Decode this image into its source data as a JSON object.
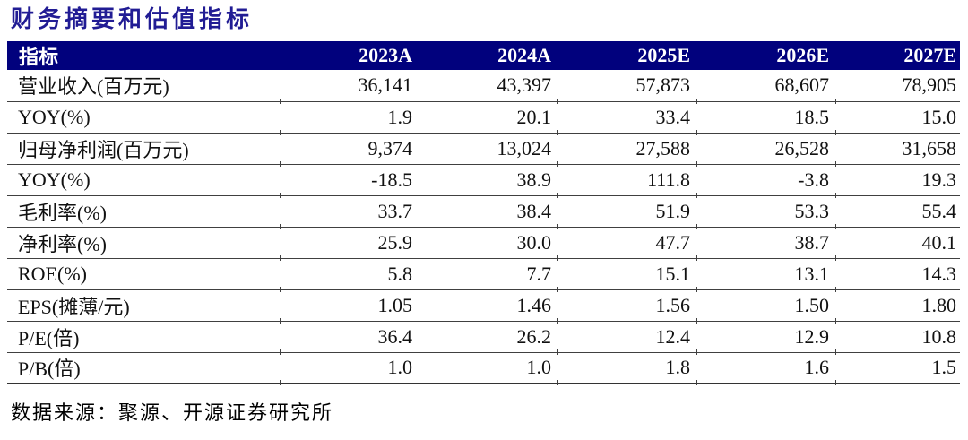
{
  "title": "财务摘要和估值指标",
  "source": "数据来源：聚源、开源证券研究所",
  "colors": {
    "header_bg": "#01017d",
    "header_text": "#ffffff",
    "title_text": "#211c94",
    "rule": "#404040"
  },
  "table": {
    "columns": [
      "指标",
      "2023A",
      "2024A",
      "2025E",
      "2026E",
      "2027E"
    ],
    "rows": [
      {
        "label": "营业收入(百万元)",
        "values": [
          "36,141",
          "43,397",
          "57,873",
          "68,607",
          "78,905"
        ]
      },
      {
        "label": "YOY(%)",
        "values": [
          "1.9",
          "20.1",
          "33.4",
          "18.5",
          "15.0"
        ]
      },
      {
        "label": "归母净利润(百万元)",
        "values": [
          "9,374",
          "13,024",
          "27,588",
          "26,528",
          "31,658"
        ]
      },
      {
        "label": "YOY(%)",
        "values": [
          "-18.5",
          "38.9",
          "111.8",
          "-3.8",
          "19.3"
        ]
      },
      {
        "label": "毛利率(%)",
        "values": [
          "33.7",
          "38.4",
          "51.9",
          "53.3",
          "55.4"
        ]
      },
      {
        "label": "净利率(%)",
        "values": [
          "25.9",
          "30.0",
          "47.7",
          "38.7",
          "40.1"
        ]
      },
      {
        "label": "ROE(%)",
        "values": [
          "5.8",
          "7.7",
          "15.1",
          "13.1",
          "14.3"
        ]
      },
      {
        "label": "EPS(摊薄/元)",
        "values": [
          "1.05",
          "1.46",
          "1.56",
          "1.50",
          "1.80"
        ]
      },
      {
        "label": "P/E(倍)",
        "values": [
          "36.4",
          "26.2",
          "12.4",
          "12.9",
          "10.8"
        ]
      },
      {
        "label": "P/B(倍)",
        "values": [
          "1.0",
          "1.0",
          "1.8",
          "1.6",
          "1.5"
        ]
      }
    ]
  }
}
